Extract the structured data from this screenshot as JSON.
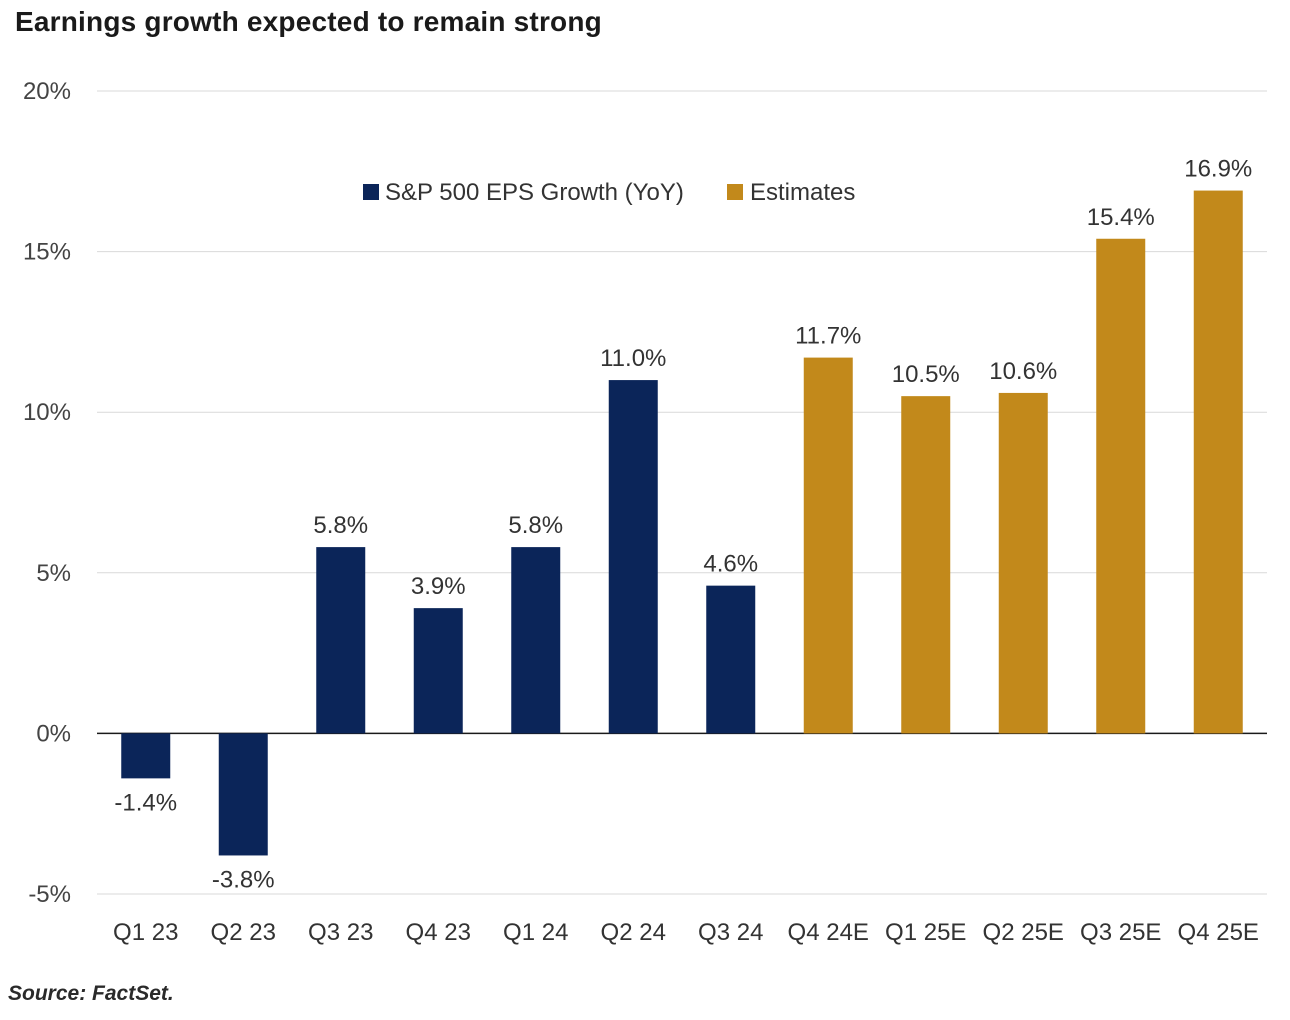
{
  "title": "Earnings growth expected to remain strong",
  "source": "Source: FactSet.",
  "chart_data": {
    "type": "bar",
    "categories": [
      "Q1 23",
      "Q2 23",
      "Q3 23",
      "Q4 23",
      "Q1 24",
      "Q2 24",
      "Q3 24",
      "Q4 24E",
      "Q1 25E",
      "Q2 25E",
      "Q3 25E",
      "Q4 25E"
    ],
    "values": [
      -1.4,
      -3.8,
      5.8,
      3.9,
      5.8,
      11.0,
      4.6,
      11.7,
      10.5,
      10.6,
      15.4,
      16.9
    ],
    "data_labels": [
      "-1.4%",
      "-3.8%",
      "5.8%",
      "3.9%",
      "5.8%",
      "11.0%",
      "4.6%",
      "11.7%",
      "10.5%",
      "10.6%",
      "15.4%",
      "16.9%"
    ],
    "series_index": [
      0,
      0,
      0,
      0,
      0,
      0,
      0,
      1,
      1,
      1,
      1,
      1
    ],
    "series": [
      {
        "name": "S&P 500 EPS Growth (YoY)",
        "color": "#0b2559"
      },
      {
        "name": "Estimates",
        "color": "#c2891b"
      }
    ],
    "y_ticks": [
      20,
      15,
      10,
      5,
      0,
      -5
    ],
    "y_tick_labels": [
      "20%",
      "15%",
      "10%",
      "5%",
      "0%",
      "-5%"
    ],
    "ylim": [
      -5,
      20
    ],
    "grid": true,
    "legend_position": "top-center"
  }
}
